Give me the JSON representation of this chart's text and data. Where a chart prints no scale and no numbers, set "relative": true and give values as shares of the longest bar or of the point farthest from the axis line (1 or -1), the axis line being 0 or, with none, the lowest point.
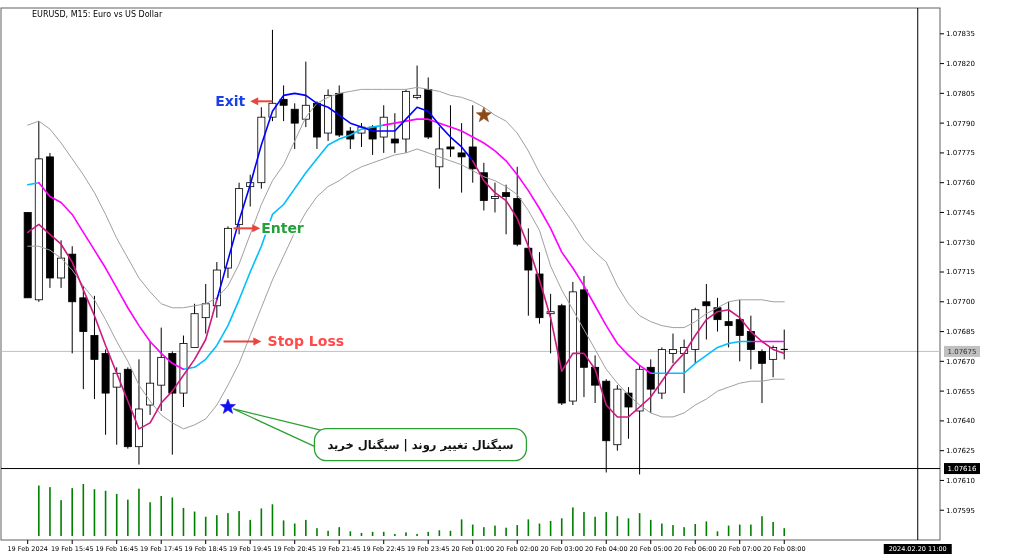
{
  "chart_data": [
    {
      "type": "candlestick",
      "title": "EURUSD, M15:  Euro vs US Dollar",
      "categories": [
        "19 Feb 2024",
        null,
        null,
        null,
        "19 Feb 15:45",
        null,
        null,
        null,
        "19 Feb 16:45",
        null,
        null,
        null,
        "19 Feb 17:45",
        null,
        null,
        null,
        "19 Feb 18:45",
        null,
        null,
        null,
        "19 Feb 19:45",
        null,
        null,
        null,
        "19 Feb 20:45",
        null,
        null,
        null,
        "19 Feb 21:45",
        null,
        null,
        null,
        "19 Feb 22:45",
        null,
        null,
        null,
        "19 Feb 23:45",
        null,
        null,
        null,
        "20 Feb 01:00",
        null,
        null,
        null,
        "20 Feb 02:00",
        null,
        null,
        null,
        "20 Feb 03:00",
        null,
        null,
        null,
        "20 Feb 04:00",
        null,
        null,
        null,
        "20 Feb 05:00",
        null,
        null,
        null,
        "20 Feb 06:00",
        null,
        null,
        null,
        "20 Feb 07:00",
        null,
        null,
        null,
        "20 Feb 08:00",
        null,
        null,
        null,
        null,
        null,
        null,
        null,
        null,
        null,
        null,
        null,
        "2024.02.20 11:00",
        null,
        null
      ],
      "ohlc": [
        [
          1.07745,
          1.07745,
          1.07702,
          1.07702
        ],
        [
          1.07701,
          1.07791,
          1.077,
          1.07772
        ],
        [
          1.07773,
          1.07775,
          1.07707,
          1.07712
        ],
        [
          1.07712,
          1.07731,
          1.07707,
          1.07722
        ],
        [
          1.07724,
          1.07728,
          1.07674,
          1.077
        ],
        [
          1.07702,
          1.07708,
          1.07656,
          1.07685
        ],
        [
          1.07683,
          1.07703,
          1.07651,
          1.07671
        ],
        [
          1.07674,
          1.07676,
          1.07633,
          1.07654
        ],
        [
          1.07657,
          1.07667,
          1.07628,
          1.07664
        ],
        [
          1.07666,
          1.07667,
          1.07626,
          1.07627
        ],
        [
          1.07627,
          1.07671,
          1.07618,
          1.07646
        ],
        [
          1.07648,
          1.0768,
          1.07643,
          1.07659
        ],
        [
          1.07658,
          1.07687,
          1.07645,
          1.07672
        ],
        [
          1.07674,
          1.07675,
          1.07623,
          1.07654
        ],
        [
          1.07654,
          1.07683,
          1.07647,
          1.07679
        ],
        [
          1.07677,
          1.07699,
          1.07677,
          1.07694
        ],
        [
          1.07692,
          1.07709,
          1.07684,
          1.07699
        ],
        [
          1.07698,
          1.0772,
          1.07692,
          1.07716
        ],
        [
          1.07717,
          1.07738,
          1.07712,
          1.07737
        ],
        [
          1.07739,
          1.0776,
          1.07734,
          1.07757
        ],
        [
          1.07758,
          1.07764,
          1.07748,
          1.0776
        ],
        [
          1.0776,
          1.07798,
          1.07757,
          1.07793
        ],
        [
          1.07793,
          1.07837,
          1.07791,
          1.078
        ],
        [
          1.07802,
          1.07809,
          1.07791,
          1.07799
        ],
        [
          1.07797,
          1.078,
          1.07777,
          1.0779
        ],
        [
          1.07792,
          1.07821,
          1.07788,
          1.07799
        ],
        [
          1.078,
          1.07801,
          1.07777,
          1.07783
        ],
        [
          1.07785,
          1.07807,
          1.07781,
          1.07804
        ],
        [
          1.07805,
          1.07809,
          1.07783,
          1.07784
        ],
        [
          1.07786,
          1.07788,
          1.07777,
          1.07782
        ],
        [
          1.07785,
          1.0779,
          1.07778,
          1.07788
        ],
        [
          1.07788,
          1.07789,
          1.07774,
          1.07782
        ],
        [
          1.07783,
          1.07799,
          1.07775,
          1.07793
        ],
        [
          1.07782,
          1.07795,
          1.07775,
          1.0778
        ],
        [
          1.07782,
          1.07807,
          1.07775,
          1.07806
        ],
        [
          1.07803,
          1.07819,
          1.07802,
          1.07804
        ],
        [
          1.07807,
          1.07813,
          1.07782,
          1.07783
        ],
        [
          1.07768,
          1.07788,
          1.07757,
          1.07777
        ],
        [
          1.07778,
          1.07799,
          1.07773,
          1.07777
        ],
        [
          1.07775,
          1.0779,
          1.07755,
          1.07773
        ],
        [
          1.07778,
          1.07799,
          1.0776,
          1.07767
        ],
        [
          1.07765,
          1.0777,
          1.07746,
          1.07751
        ],
        [
          1.07752,
          1.0776,
          1.07745,
          1.07753
        ],
        [
          1.07755,
          1.07759,
          1.07734,
          1.07753
        ],
        [
          1.07752,
          1.07768,
          1.07728,
          1.07729
        ],
        [
          1.07727,
          1.07737,
          1.07693,
          1.07716
        ],
        [
          1.07714,
          1.07725,
          1.07689,
          1.07692
        ],
        [
          1.07694,
          1.07704,
          1.07674,
          1.07695
        ],
        [
          1.07698,
          1.07699,
          1.07648,
          1.07649
        ],
        [
          1.0765,
          1.0771,
          1.07648,
          1.07705
        ],
        [
          1.07706,
          1.07713,
          1.07652,
          1.07667
        ],
        [
          1.07667,
          1.07673,
          1.07649,
          1.07658
        ],
        [
          1.0766,
          1.07661,
          1.07614,
          1.0763
        ],
        [
          1.07628,
          1.07658,
          1.07625,
          1.07656
        ],
        [
          1.07654,
          1.07657,
          1.07631,
          1.07647
        ],
        [
          1.07645,
          1.07668,
          1.07613,
          1.07666
        ],
        [
          1.07667,
          1.07671,
          1.07644,
          1.07656
        ],
        [
          1.07654,
          1.07677,
          1.07651,
          1.07676
        ],
        [
          1.07674,
          1.07684,
          1.07669,
          1.07676
        ],
        [
          1.07674,
          1.07681,
          1.07654,
          1.07677
        ],
        [
          1.07676,
          1.07697,
          1.07669,
          1.07696
        ],
        [
          1.077,
          1.07709,
          1.07681,
          1.07698
        ],
        [
          1.07697,
          1.07702,
          1.07685,
          1.07691
        ],
        [
          1.0769,
          1.077,
          1.07677,
          1.07688
        ],
        [
          1.07691,
          1.07701,
          1.0767,
          1.07683
        ],
        [
          1.07685,
          1.07693,
          1.07666,
          1.07676
        ],
        [
          1.07675,
          1.07676,
          1.07649,
          1.07669
        ],
        [
          1.07671,
          1.07678,
          1.07662,
          1.07677
        ],
        [
          1.07676,
          1.07686,
          1.07671,
          1.07676
        ],
        null,
        null,
        null,
        null,
        null,
        null,
        null,
        null,
        null,
        null,
        null,
        null,
        null,
        null
      ],
      "series": [
        {
          "type": "line",
          "color": "#a0a0a0",
          "values": [
            1.07789,
            1.07791,
            1.07787,
            1.0778,
            1.07772,
            1.07764,
            1.07755,
            1.07744,
            1.07732,
            1.07722,
            1.07712,
            1.07705,
            1.07699,
            1.07697,
            1.07697,
            1.07698,
            1.07699,
            1.07702,
            1.07708,
            1.07719,
            1.07734,
            1.07749,
            1.07761,
            1.07769,
            1.07781,
            1.07793,
            1.078,
            1.07803,
            1.07805,
            1.07806,
            1.07807,
            1.07807,
            1.07807,
            1.07807,
            1.07807,
            1.07808,
            1.07807,
            1.07806,
            1.07804,
            1.07803,
            1.07801,
            1.07798,
            1.07794,
            1.07791,
            1.07785,
            1.07776,
            1.07765,
            1.07756,
            1.07748,
            1.0774,
            1.07731,
            1.07725,
            1.0772,
            1.07708,
            1.07699,
            1.07693,
            1.0769,
            1.07688,
            1.07687,
            1.07687,
            1.0769,
            1.07694,
            1.07697,
            1.077,
            1.07701,
            1.07701,
            1.07701,
            1.077,
            1.077,
            null,
            null,
            null,
            null,
            null,
            null,
            null,
            null,
            null,
            null,
            null,
            null,
            null,
            null
          ]
        },
        {
          "type": "line",
          "color": "#a0a0a0",
          "values": [
            1.07728,
            1.07728,
            1.07726,
            1.07722,
            1.07716,
            1.07708,
            1.07701,
            1.07691,
            1.0768,
            1.0767,
            1.07658,
            1.0765,
            1.07643,
            1.07639,
            1.07636,
            1.07638,
            1.07641,
            1.07648,
            1.07658,
            1.07669,
            1.07683,
            1.07697,
            1.07711,
            1.07723,
            1.07735,
            1.07745,
            1.07753,
            1.07758,
            1.07761,
            1.07765,
            1.07768,
            1.0777,
            1.07772,
            1.07774,
            1.07775,
            1.07777,
            1.07775,
            1.07773,
            1.07771,
            1.07769,
            1.07766,
            1.07763,
            1.07761,
            1.07758,
            1.07754,
            1.07746,
            1.07736,
            1.07718,
            1.07706,
            1.07696,
            1.07686,
            1.07676,
            1.07666,
            1.07659,
            1.07653,
            1.07648,
            1.07644,
            1.07642,
            1.07642,
            1.07644,
            1.07648,
            1.07651,
            1.07655,
            1.07657,
            1.07659,
            1.0766,
            1.0766,
            1.07661,
            1.07661,
            null,
            null,
            null,
            null,
            null,
            null,
            null,
            null,
            null,
            null,
            null,
            null,
            null,
            null
          ]
        },
        {
          "type": "line",
          "color": "#00bfff",
          "values": [
            1.07759,
            1.0776,
            null,
            null,
            null,
            null,
            null,
            null,
            null,
            null,
            null,
            null,
            null,
            null,
            1.07666,
            1.07667,
            1.07671,
            1.07678,
            1.07688,
            1.07701,
            1.07715,
            1.07728,
            1.07744,
            1.07749,
            1.07757,
            1.07765,
            1.07772,
            1.07779,
            1.07782,
            1.07784,
            1.07787,
            1.07788,
            1.07789,
            null,
            null,
            null,
            null,
            null,
            null,
            null,
            null,
            null,
            null,
            null,
            null,
            null,
            null,
            null,
            null,
            null,
            null,
            null,
            null,
            null,
            null,
            null,
            1.07664,
            1.07664,
            1.07664,
            1.07664,
            1.07669,
            1.07673,
            1.07677,
            1.07679,
            1.0768,
            1.0768,
            null,
            null,
            null,
            null,
            null,
            null,
            null,
            null,
            null,
            null,
            null,
            null,
            null,
            null,
            null,
            null,
            null
          ]
        },
        {
          "type": "line",
          "color": "#ff00ff",
          "values": [
            null,
            1.0776,
            1.07753,
            1.0775,
            1.07744,
            1.07735,
            1.07726,
            1.07717,
            1.07707,
            1.07697,
            1.07688,
            1.0768,
            1.07674,
            1.07669,
            1.07666,
            null,
            null,
            null,
            null,
            null,
            null,
            null,
            null,
            null,
            null,
            null,
            null,
            null,
            null,
            null,
            null,
            null,
            1.07789,
            1.0779,
            1.07791,
            1.07792,
            1.07792,
            1.0779,
            1.07788,
            1.07786,
            1.07783,
            1.0778,
            1.07776,
            1.07771,
            1.07764,
            1.07756,
            1.07747,
            1.07737,
            1.07725,
            1.07717,
            1.07708,
            1.07698,
            1.07688,
            1.07679,
            1.07673,
            1.07668,
            1.07664,
            null,
            null,
            null,
            null,
            null,
            null,
            null,
            null,
            1.0768,
            1.0768,
            1.0768,
            1.0768,
            null,
            null,
            null,
            null,
            null,
            null,
            null,
            null,
            null,
            null,
            null,
            null,
            null,
            null
          ]
        },
        {
          "type": "line",
          "color": "#0000ff",
          "values": [
            null,
            null,
            null,
            null,
            null,
            null,
            null,
            null,
            null,
            null,
            null,
            null,
            null,
            null,
            null,
            null,
            null,
            1.07701,
            1.07721,
            1.07741,
            1.07759,
            1.07779,
            1.07796,
            1.07804,
            1.07805,
            1.07804,
            1.078,
            1.07798,
            1.07794,
            1.0779,
            1.07788,
            1.07786,
            1.07786,
            1.07786,
            1.07792,
            1.07798,
            1.07796,
            1.07789,
            1.07783,
            1.07778,
            1.07771,
            null,
            null,
            null,
            null,
            null,
            null,
            null,
            null,
            null,
            null,
            null,
            null,
            null,
            null,
            null,
            null,
            null,
            null,
            null,
            null,
            null,
            null,
            null,
            null,
            null,
            null,
            null,
            null,
            null,
            null,
            null,
            null,
            null,
            null,
            null,
            null,
            null,
            null,
            null,
            null,
            null,
            null
          ]
        },
        {
          "type": "line",
          "color": "#cc1a80",
          "values": [
            1.07735,
            1.07739,
            1.07734,
            1.07729,
            1.0772,
            1.07706,
            1.07693,
            1.07678,
            1.07664,
            1.0765,
            1.07636,
            1.07639,
            1.07649,
            1.07655,
            1.07663,
            1.07671,
            1.07681,
            1.07701,
            null,
            null,
            null,
            null,
            null,
            null,
            null,
            null,
            null,
            null,
            null,
            null,
            null,
            null,
            null,
            null,
            null,
            null,
            null,
            null,
            null,
            null,
            1.07771,
            1.07761,
            1.07755,
            1.07751,
            1.07742,
            1.07728,
            1.07711,
            1.07692,
            1.07665,
            1.07674,
            1.07674,
            1.07666,
            1.07648,
            1.07642,
            1.07642,
            1.07647,
            1.07652,
            1.0766,
            1.07668,
            1.07674,
            1.07683,
            1.07691,
            1.07695,
            1.07696,
            1.07692,
            1.07685,
            1.0768,
            1.07676,
            1.07674,
            null,
            null,
            null,
            null,
            null,
            null,
            null,
            null,
            null,
            null,
            null,
            null,
            null,
            null
          ]
        },
        {
          "type": "scatter",
          "color": "#1010f0",
          "marker": "star",
          "values": [
            null,
            null,
            null,
            null,
            null,
            null,
            null,
            null,
            null,
            null,
            null,
            null,
            null,
            null,
            null,
            null,
            null,
            null,
            1.07647,
            null,
            null,
            null,
            null,
            null,
            null,
            null,
            null,
            null,
            null,
            null,
            null,
            null,
            null,
            null,
            null,
            null,
            null,
            null,
            null,
            null,
            null,
            null,
            null,
            null,
            null,
            null,
            null,
            null,
            null,
            null,
            null,
            null,
            null,
            null,
            null,
            null,
            null,
            null,
            null,
            null,
            null,
            null,
            null,
            null,
            null,
            null,
            null,
            null,
            null,
            null,
            null,
            null,
            null,
            null,
            null,
            null,
            null,
            null,
            null,
            null,
            null,
            null,
            null
          ]
        },
        {
          "type": "scatter",
          "color": "#8b4a1a",
          "marker": "star",
          "values": [
            null,
            null,
            null,
            null,
            null,
            null,
            null,
            null,
            null,
            null,
            null,
            null,
            null,
            null,
            null,
            null,
            null,
            null,
            null,
            null,
            null,
            null,
            null,
            null,
            null,
            null,
            null,
            null,
            null,
            null,
            null,
            null,
            null,
            null,
            null,
            null,
            null,
            null,
            null,
            null,
            null,
            1.07794,
            null,
            null,
            null,
            null,
            null,
            null,
            null,
            null,
            null,
            null,
            null,
            null,
            null,
            null,
            null,
            null,
            null,
            null,
            null,
            null,
            null,
            null,
            null,
            null,
            null,
            null,
            null,
            null,
            null,
            null,
            null,
            null,
            null,
            null,
            null,
            null,
            null,
            null,
            null,
            null,
            null
          ]
        }
      ],
      "ylim": [
        1.0758,
        1.07848
      ],
      "yticks": [
        1.07595,
        {
          "value": 1.0761,
          "label": "1.07610"
        },
        1.07625,
        {
          "value": 1.0764,
          "label": "1.07640"
        },
        1.07655,
        {
          "value": 1.0767,
          "label": "1.07670"
        },
        1.07685,
        {
          "value": 1.077,
          "label": "1.07700"
        },
        1.07715,
        {
          "value": 1.0773,
          "label": "1.07730"
        },
        1.07745,
        {
          "value": 1.0776,
          "label": "1.07760"
        },
        1.07775,
        {
          "value": 1.0779,
          "label": "1.07790"
        },
        1.07805,
        {
          "value": 1.0782,
          "label": "1.07820"
        },
        1.07835
      ],
      "ref_lines": [
        {
          "axis": "y",
          "value": 1.07675,
          "label": "1.07675",
          "color": "#c0c0c0"
        },
        {
          "axis": "y",
          "value": 1.07616,
          "label": "1.07616",
          "color": "#000000"
        },
        {
          "axis": "x",
          "value": "2024.02.20 11:00",
          "color": "#000000"
        }
      ],
      "annotations": [
        "Exit",
        "Enter",
        "Stop Loss",
        "سیگنال تغییر روند | سیگنال خرید"
      ]
    },
    {
      "type": "bar",
      "relative": true,
      "color": "#008000",
      "categories": [
        null,
        null,
        null,
        null,
        null,
        null,
        null,
        null,
        null,
        null,
        null,
        null,
        null,
        null,
        null,
        null,
        null,
        null,
        null,
        null,
        null,
        null,
        null,
        null,
        null,
        null,
        null,
        null,
        null,
        null,
        null,
        null,
        null,
        null,
        null,
        null,
        null,
        null,
        null,
        null,
        null,
        null,
        null,
        null,
        null,
        null,
        null,
        null,
        null,
        null,
        null,
        null,
        null,
        null,
        null,
        null,
        null,
        null,
        null,
        null,
        null,
        null,
        null,
        null,
        null,
        null,
        null,
        null,
        null,
        null,
        null,
        null,
        null,
        null,
        null,
        null,
        null,
        null,
        null,
        null,
        null,
        null,
        null
      ],
      "values": [
        null,
        0.97,
        0.94,
        0.69,
        0.92,
        1,
        0.9,
        0.87,
        0.81,
        0.7,
        0.91,
        0.65,
        0.77,
        0.74,
        0.54,
        0.47,
        0.37,
        0.4,
        0.44,
        0.48,
        0.31,
        0.53,
        0.61,
        0.3,
        0.24,
        0.31,
        0.15,
        0.1,
        0.17,
        0.09,
        0.06,
        0.08,
        0.08,
        0.04,
        0.07,
        0.04,
        0.08,
        0.11,
        0.1,
        0.32,
        0.22,
        0.17,
        0.2,
        0.16,
        0.21,
        0.32,
        0.24,
        0.29,
        0.34,
        0.55,
        0.46,
        0.37,
        0.46,
        0.38,
        0.34,
        0.44,
        0.31,
        0.24,
        0.21,
        0.17,
        0.23,
        0.28,
        0.09,
        0.2,
        0.22,
        0.22,
        0.38,
        0.27,
        0.15,
        null,
        null,
        null,
        null,
        null,
        null,
        null,
        null,
        null,
        null,
        null,
        null,
        null,
        null
      ]
    }
  ]
}
